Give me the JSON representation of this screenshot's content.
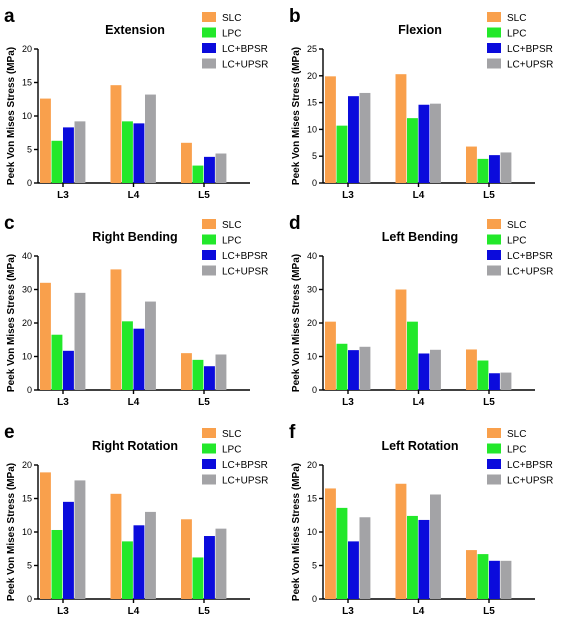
{
  "chart_data": [
    {
      "panel": "a",
      "type": "bar",
      "title": "Extension",
      "ylabel": "Peek Von Mises Stress (MPa)",
      "categories": [
        "L3",
        "L4",
        "L5"
      ],
      "ylim": [
        0,
        20
      ],
      "yticks": [
        0,
        5,
        10,
        15,
        20
      ],
      "legend_position": "top-right",
      "series": [
        {
          "name": "SLC",
          "color": "#F9A04C",
          "values": [
            12.6,
            14.6,
            6.0
          ]
        },
        {
          "name": "LPC",
          "color": "#22E82A",
          "values": [
            6.3,
            9.2,
            2.6
          ]
        },
        {
          "name": "LC+BPSR",
          "color": "#0B0BDC",
          "values": [
            8.3,
            8.9,
            3.9
          ]
        },
        {
          "name": "LC+UPSR",
          "color": "#A3A3A6",
          "values": [
            9.2,
            13.2,
            4.4
          ]
        }
      ]
    },
    {
      "panel": "b",
      "type": "bar",
      "title": "Flexion",
      "ylabel": "Peek Von Mises Stress (MPa)",
      "categories": [
        "L3",
        "L4",
        "L5"
      ],
      "ylim": [
        0,
        25
      ],
      "yticks": [
        0,
        5,
        10,
        15,
        20,
        25
      ],
      "legend_position": "top-right",
      "series": [
        {
          "name": "SLC",
          "color": "#F9A04C",
          "values": [
            19.9,
            20.3,
            6.8
          ]
        },
        {
          "name": "LPC",
          "color": "#22E82A",
          "values": [
            10.7,
            12.1,
            4.5
          ]
        },
        {
          "name": "LC+BPSR",
          "color": "#0B0BDC",
          "values": [
            16.2,
            14.6,
            5.2
          ]
        },
        {
          "name": "LC+UPSR",
          "color": "#A3A3A6",
          "values": [
            16.8,
            14.8,
            5.7
          ]
        }
      ]
    },
    {
      "panel": "c",
      "type": "bar",
      "title": "Right Bending",
      "ylabel": "Peek Von Mises Stress (MPa)",
      "categories": [
        "L3",
        "L4",
        "L5"
      ],
      "ylim": [
        0,
        40
      ],
      "yticks": [
        0,
        10,
        20,
        30,
        40
      ],
      "legend_position": "top-right",
      "series": [
        {
          "name": "SLC",
          "color": "#F9A04C",
          "values": [
            32.0,
            36.0,
            11.0
          ]
        },
        {
          "name": "LPC",
          "color": "#22E82A",
          "values": [
            16.5,
            20.5,
            9.0
          ]
        },
        {
          "name": "LC+BPSR",
          "color": "#0B0BDC",
          "values": [
            11.7,
            18.3,
            7.1
          ]
        },
        {
          "name": "LC+UPSR",
          "color": "#A3A3A6",
          "values": [
            29.0,
            26.4,
            10.6
          ]
        }
      ]
    },
    {
      "panel": "d",
      "type": "bar",
      "title": "Left Bending",
      "ylabel": "Peek Von Mises Stress (MPa)",
      "categories": [
        "L3",
        "L4",
        "L5"
      ],
      "ylim": [
        0,
        40
      ],
      "yticks": [
        0,
        10,
        20,
        30,
        40
      ],
      "legend_position": "top-right",
      "series": [
        {
          "name": "SLC",
          "color": "#F9A04C",
          "values": [
            20.4,
            30.0,
            12.1
          ]
        },
        {
          "name": "LPC",
          "color": "#22E82A",
          "values": [
            13.8,
            20.4,
            8.8
          ]
        },
        {
          "name": "LC+BPSR",
          "color": "#0B0BDC",
          "values": [
            11.9,
            10.9,
            5.0
          ]
        },
        {
          "name": "LC+UPSR",
          "color": "#A3A3A6",
          "values": [
            12.9,
            12.0,
            5.2
          ]
        }
      ]
    },
    {
      "panel": "e",
      "type": "bar",
      "title": "Right Rotation",
      "ylabel": "Peek Von Mises Stress (MPa)",
      "categories": [
        "L3",
        "L4",
        "L5"
      ],
      "ylim": [
        0,
        20
      ],
      "yticks": [
        0,
        5,
        10,
        15,
        20
      ],
      "legend_position": "top-right",
      "series": [
        {
          "name": "SLC",
          "color": "#F9A04C",
          "values": [
            18.9,
            15.7,
            11.9
          ]
        },
        {
          "name": "LPC",
          "color": "#22E82A",
          "values": [
            10.3,
            8.6,
            6.2
          ]
        },
        {
          "name": "LC+BPSR",
          "color": "#0B0BDC",
          "values": [
            14.5,
            11.0,
            9.4
          ]
        },
        {
          "name": "LC+UPSR",
          "color": "#A3A3A6",
          "values": [
            17.7,
            13.0,
            10.5
          ]
        }
      ]
    },
    {
      "panel": "f",
      "type": "bar",
      "title": "Left Rotation",
      "ylabel": "Peek Von Mises Stress (MPa)",
      "categories": [
        "L3",
        "L4",
        "L5"
      ],
      "ylim": [
        0,
        20
      ],
      "yticks": [
        0,
        5,
        10,
        15,
        20
      ],
      "legend_position": "top-right",
      "series": [
        {
          "name": "SLC",
          "color": "#F9A04C",
          "values": [
            16.5,
            17.2,
            7.3
          ]
        },
        {
          "name": "LPC",
          "color": "#22E82A",
          "values": [
            13.6,
            12.4,
            6.7
          ]
        },
        {
          "name": "LC+BPSR",
          "color": "#0B0BDC",
          "values": [
            8.6,
            11.8,
            5.7
          ]
        },
        {
          "name": "LC+UPSR",
          "color": "#A3A3A6",
          "values": [
            12.2,
            15.6,
            5.7
          ]
        }
      ]
    }
  ]
}
